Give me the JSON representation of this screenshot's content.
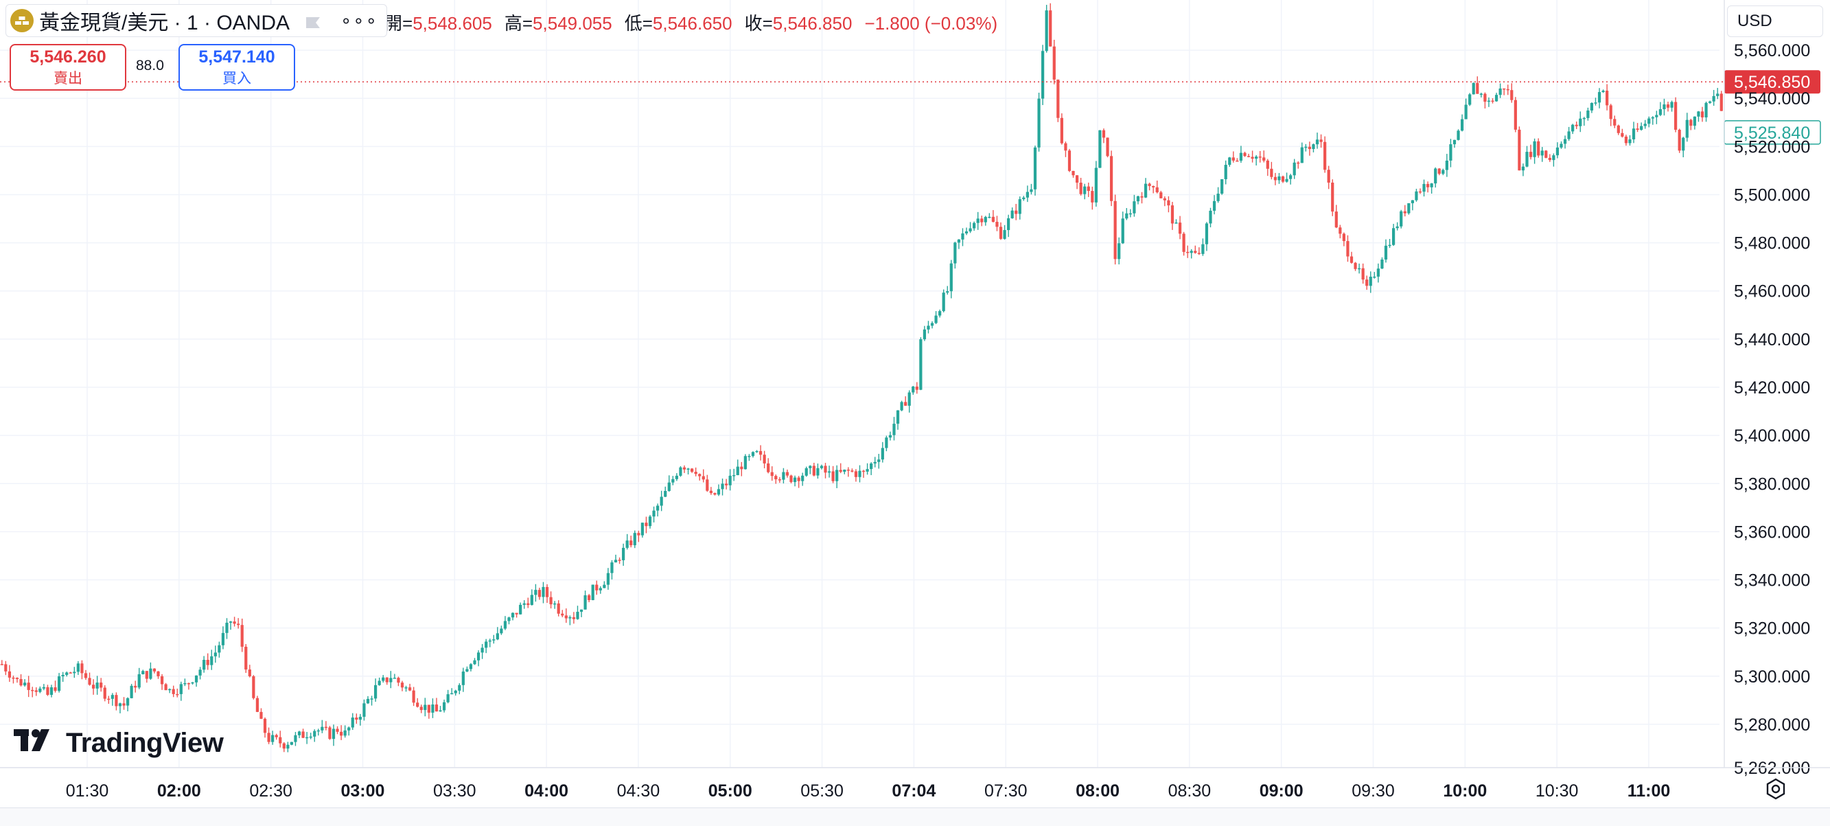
{
  "legend": {
    "symbol": "黃金現貨/美元 · 1 · OANDA",
    "more": "∘∘∘",
    "ohlc": [
      {
        "key": "開=",
        "value": "5,548.605"
      },
      {
        "key": "高=",
        "value": "5,549.055"
      },
      {
        "key": "低=",
        "value": "5,546.650"
      },
      {
        "key": "收=",
        "value": "5,546.850"
      },
      {
        "key": "",
        "value": "−1.800 (−0.03%)"
      }
    ]
  },
  "trade": {
    "sell_price": "5,546.260",
    "sell_label": "賣出",
    "spread": "88.0",
    "buy_price": "5,547.140",
    "buy_label": "買入"
  },
  "currency": "USD",
  "branding": "TradingView",
  "colors": {
    "up": "#26a69a",
    "down": "#ef5350",
    "last_price": "#e0383e",
    "avg_price": "#26a69a"
  },
  "chart_data": {
    "type": "candlestick",
    "title": "黃金現貨/美元 · 1 · OANDA",
    "interval": "1 minute",
    "ylim": [
      5262,
      5578
    ],
    "y_ticks": [
      "5,262.000",
      "5,280.000",
      "5,300.000",
      "5,320.000",
      "5,340.000",
      "5,360.000",
      "5,380.000",
      "5,400.000",
      "5,420.000",
      "5,440.000",
      "5,460.000",
      "5,480.000",
      "5,500.000",
      "5,520.000",
      "5,540.000",
      "5,560.000"
    ],
    "x_ticks": [
      {
        "label": "01:30",
        "bold": false
      },
      {
        "label": "02:00",
        "bold": true
      },
      {
        "label": "02:30",
        "bold": false
      },
      {
        "label": "03:00",
        "bold": true
      },
      {
        "label": "03:30",
        "bold": false
      },
      {
        "label": "04:00",
        "bold": true
      },
      {
        "label": "04:30",
        "bold": false
      },
      {
        "label": "05:00",
        "bold": true
      },
      {
        "label": "05:30",
        "bold": false
      },
      {
        "label": "07:04",
        "bold": true
      },
      {
        "label": "07:30",
        "bold": false
      },
      {
        "label": "08:00",
        "bold": true
      },
      {
        "label": "08:30",
        "bold": false
      },
      {
        "label": "09:00",
        "bold": true
      },
      {
        "label": "09:30",
        "bold": false
      },
      {
        "label": "10:00",
        "bold": true
      },
      {
        "label": "10:30",
        "bold": false
      },
      {
        "label": "11:00",
        "bold": true
      }
    ],
    "last_price": {
      "value": 5546.85,
      "label": "5,546.850"
    },
    "avg_price": {
      "value": 5525.84,
      "label": "5,525.840"
    },
    "price_path": [
      [
        0,
        5305
      ],
      [
        4,
        5298
      ],
      [
        8,
        5296
      ],
      [
        12,
        5292
      ],
      [
        16,
        5300
      ],
      [
        20,
        5303
      ],
      [
        24,
        5296
      ],
      [
        28,
        5292
      ],
      [
        32,
        5288
      ],
      [
        36,
        5300
      ],
      [
        40,
        5302
      ],
      [
        44,
        5294
      ],
      [
        48,
        5296
      ],
      [
        52,
        5303
      ],
      [
        56,
        5310
      ],
      [
        60,
        5323
      ],
      [
        62,
        5320
      ],
      [
        66,
        5290
      ],
      [
        68,
        5280
      ],
      [
        70,
        5274
      ],
      [
        74,
        5272
      ],
      [
        78,
        5275
      ],
      [
        82,
        5278
      ],
      [
        86,
        5276
      ],
      [
        88,
        5278
      ],
      [
        90,
        5276
      ],
      [
        94,
        5285
      ],
      [
        98,
        5295
      ],
      [
        102,
        5300
      ],
      [
        106,
        5295
      ],
      [
        110,
        5288
      ],
      [
        114,
        5285
      ],
      [
        118,
        5292
      ],
      [
        122,
        5305
      ],
      [
        126,
        5312
      ],
      [
        130,
        5318
      ],
      [
        134,
        5325
      ],
      [
        138,
        5332
      ],
      [
        142,
        5335
      ],
      [
        146,
        5328
      ],
      [
        150,
        5325
      ],
      [
        154,
        5334
      ],
      [
        158,
        5340
      ],
      [
        162,
        5350
      ],
      [
        166,
        5358
      ],
      [
        170,
        5365
      ],
      [
        174,
        5376
      ],
      [
        178,
        5388
      ],
      [
        182,
        5386
      ],
      [
        186,
        5374
      ],
      [
        190,
        5380
      ],
      [
        194,
        5388
      ],
      [
        198,
        5392
      ],
      [
        202,
        5385
      ],
      [
        206,
        5382
      ],
      [
        210,
        5384
      ],
      [
        214,
        5386
      ],
      [
        218,
        5383
      ],
      [
        222,
        5385
      ],
      [
        226,
        5384
      ],
      [
        230,
        5392
      ],
      [
        234,
        5405
      ],
      [
        238,
        5418
      ],
      [
        240,
        5420
      ],
      [
        241,
        5440
      ],
      [
        244,
        5448
      ],
      [
        248,
        5460
      ],
      [
        250,
        5478
      ],
      [
        254,
        5488
      ],
      [
        258,
        5492
      ],
      [
        262,
        5484
      ],
      [
        266,
        5494
      ],
      [
        270,
        5504
      ],
      [
        272,
        5540
      ],
      [
        274,
        5575
      ],
      [
        276,
        5548
      ],
      [
        278,
        5520
      ],
      [
        282,
        5504
      ],
      [
        286,
        5498
      ],
      [
        288,
        5525
      ],
      [
        290,
        5518
      ],
      [
        292,
        5474
      ],
      [
        294,
        5488
      ],
      [
        298,
        5500
      ],
      [
        302,
        5505
      ],
      [
        306,
        5494
      ],
      [
        310,
        5478
      ],
      [
        314,
        5474
      ],
      [
        318,
        5498
      ],
      [
        322,
        5515
      ],
      [
        326,
        5518
      ],
      [
        330,
        5515
      ],
      [
        334,
        5505
      ],
      [
        338,
        5510
      ],
      [
        342,
        5520
      ],
      [
        346,
        5522
      ],
      [
        350,
        5485
      ],
      [
        354,
        5474
      ],
      [
        358,
        5460
      ],
      [
        362,
        5475
      ],
      [
        366,
        5488
      ],
      [
        370,
        5500
      ],
      [
        374,
        5505
      ],
      [
        378,
        5512
      ],
      [
        382,
        5525
      ],
      [
        386,
        5545
      ],
      [
        390,
        5538
      ],
      [
        394,
        5545
      ],
      [
        396,
        5540
      ],
      [
        398,
        5512
      ],
      [
        402,
        5520
      ],
      [
        406,
        5515
      ],
      [
        410,
        5525
      ],
      [
        414,
        5530
      ],
      [
        418,
        5540
      ],
      [
        420,
        5545
      ],
      [
        422,
        5530
      ],
      [
        426,
        5522
      ],
      [
        430,
        5528
      ],
      [
        434,
        5535
      ],
      [
        438,
        5538
      ],
      [
        440,
        5520
      ],
      [
        442,
        5530
      ],
      [
        446,
        5534
      ],
      [
        450,
        5542
      ],
      [
        451,
        5535
      ]
    ]
  }
}
